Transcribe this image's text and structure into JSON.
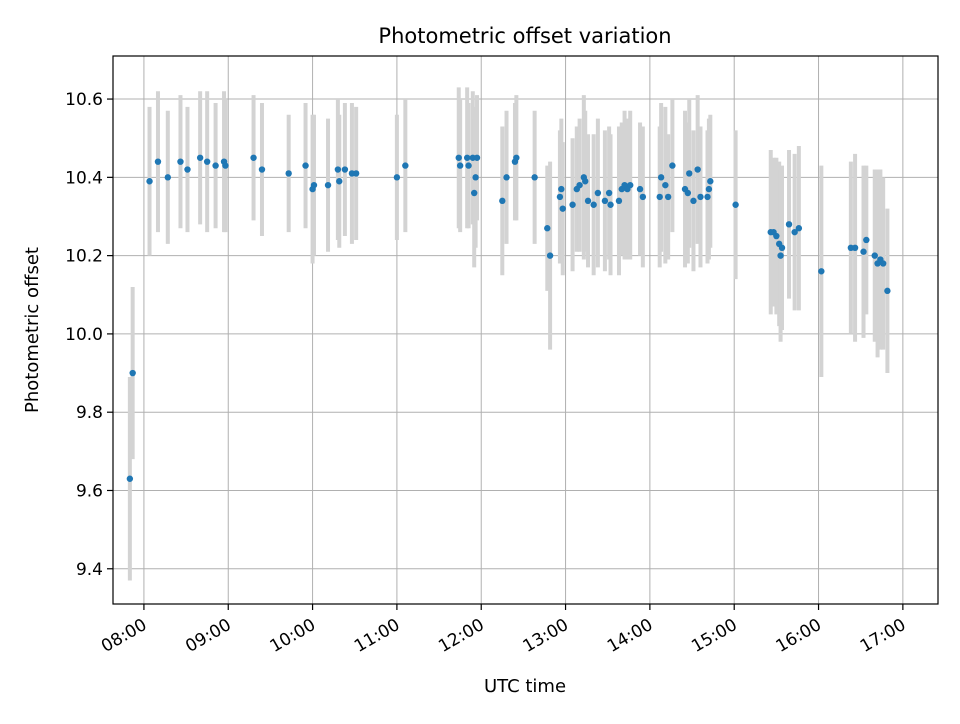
{
  "chart_data": {
    "type": "scatter",
    "title": "Photometric offset variation",
    "xlabel": "UTC time",
    "ylabel": "Photometric offset",
    "xlim": [
      "07:38",
      "17:25"
    ],
    "ylim": [
      9.31,
      10.71
    ],
    "grid": true,
    "x_ticks": [
      "08:00",
      "09:00",
      "10:00",
      "11:00",
      "12:00",
      "13:00",
      "14:00",
      "15:00",
      "16:00",
      "17:00"
    ],
    "y_ticks": [
      "9.4",
      "9.6",
      "9.8",
      "10.0",
      "10.2",
      "10.4",
      "10.6"
    ],
    "colors": {
      "points": "#1f77b4",
      "errorbars": "#d3d3d3",
      "grid": "#b0b0b0"
    },
    "series": [
      {
        "x": [
          "07:50",
          "07:52",
          "08:04",
          "08:10",
          "08:17",
          "08:26",
          "08:31",
          "08:40",
          "08:45",
          "08:51",
          "08:57",
          "08:58",
          "09:18",
          "09:24",
          "09:43",
          "09:55",
          "10:00",
          "10:01",
          "10:11",
          "10:18",
          "10:19",
          "10:23",
          "10:28",
          "10:31",
          "11:00",
          "11:06",
          "11:44",
          "11:45",
          "11:50",
          "11:51",
          "11:54",
          "11:55",
          "11:56",
          "11:57",
          "12:15",
          "12:18",
          "12:24",
          "12:25",
          "12:38",
          "12:47",
          "12:49",
          "12:56",
          "12:57",
          "12:58",
          "13:05",
          "13:08",
          "13:10",
          "13:13",
          "13:14",
          "13:16",
          "13:20",
          "13:23",
          "13:28",
          "13:31",
          "13:32",
          "13:38",
          "13:40",
          "13:42",
          "13:44",
          "13:46",
          "13:53",
          "13:55",
          "14:07",
          "14:08",
          "14:11",
          "14:13",
          "14:16",
          "14:25",
          "14:27",
          "14:28",
          "14:31",
          "14:34",
          "14:36",
          "14:41",
          "14:42",
          "14:43",
          "15:01",
          "15:26",
          "15:28",
          "15:30",
          "15:32",
          "15:33",
          "15:34",
          "15:39",
          "15:43",
          "15:46",
          "16:02",
          "16:23",
          "16:26",
          "16:32",
          "16:34",
          "16:40",
          "16:42",
          "16:44",
          "16:46",
          "16:49"
        ],
        "y": [
          9.63,
          9.9,
          10.39,
          10.44,
          10.4,
          10.44,
          10.42,
          10.45,
          10.44,
          10.43,
          10.44,
          10.43,
          10.45,
          10.42,
          10.41,
          10.43,
          10.37,
          10.38,
          10.38,
          10.42,
          10.39,
          10.42,
          10.41,
          10.41,
          10.4,
          10.43,
          10.45,
          10.43,
          10.45,
          10.43,
          10.45,
          10.36,
          10.4,
          10.45,
          10.34,
          10.4,
          10.44,
          10.45,
          10.4,
          10.27,
          10.2,
          10.35,
          10.37,
          10.32,
          10.33,
          10.37,
          10.38,
          10.4,
          10.39,
          10.34,
          10.33,
          10.36,
          10.34,
          10.36,
          10.33,
          10.34,
          10.37,
          10.38,
          10.37,
          10.38,
          10.37,
          10.35,
          10.35,
          10.4,
          10.38,
          10.35,
          10.43,
          10.37,
          10.36,
          10.41,
          10.34,
          10.42,
          10.35,
          10.35,
          10.37,
          10.39,
          10.33,
          10.26,
          10.26,
          10.25,
          10.23,
          10.2,
          10.22,
          10.28,
          10.26,
          10.27,
          10.16,
          10.22,
          10.22,
          10.21,
          10.24,
          10.2,
          10.18,
          10.19,
          10.18,
          10.11
        ],
        "yerr": [
          0.26,
          0.22,
          0.19,
          0.18,
          0.17,
          0.17,
          0.16,
          0.17,
          0.18,
          0.16,
          0.18,
          0.17,
          0.16,
          0.17,
          0.15,
          0.16,
          0.19,
          0.18,
          0.17,
          0.18,
          0.17,
          0.17,
          0.18,
          0.17,
          0.16,
          0.17,
          0.18,
          0.17,
          0.18,
          0.16,
          0.17,
          0.19,
          0.18,
          0.16,
          0.19,
          0.17,
          0.15,
          0.16,
          0.17,
          0.16,
          0.24,
          0.17,
          0.18,
          0.17,
          0.17,
          0.16,
          0.17,
          0.21,
          0.18,
          0.17,
          0.18,
          0.19,
          0.18,
          0.17,
          0.18,
          0.19,
          0.17,
          0.19,
          0.18,
          0.19,
          0.17,
          0.18,
          0.18,
          0.19,
          0.2,
          0.16,
          0.17,
          0.2,
          0.18,
          0.19,
          0.18,
          0.19,
          0.18,
          0.17,
          0.18,
          0.17,
          0.19,
          0.21,
          0.19,
          0.2,
          0.21,
          0.22,
          0.21,
          0.19,
          0.2,
          0.21,
          0.27,
          0.22,
          0.24,
          0.22,
          0.19,
          0.22,
          0.24,
          0.23,
          0.22,
          0.21
        ]
      }
    ]
  }
}
